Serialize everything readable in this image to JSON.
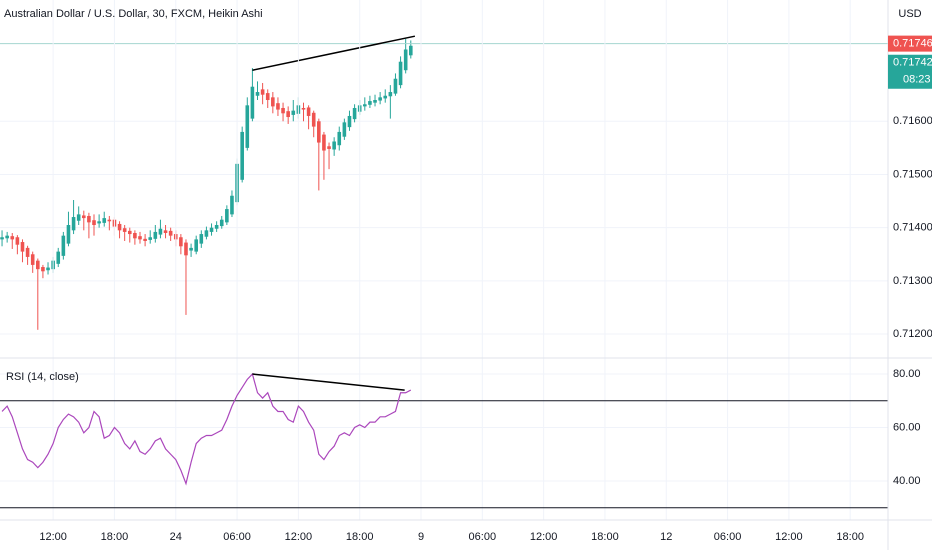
{
  "chart_data": [
    {
      "type": "candlestick",
      "title": "Australian Dollar / U.S. Dollar, 30, FXCM, Heikin Ashi",
      "currency": "USD",
      "x": [
        7,
        7.5,
        8,
        8.5,
        9,
        9.5,
        10,
        10.5,
        11,
        11.5,
        12,
        12.5,
        13,
        13.5,
        14,
        14.5,
        15,
        15.5,
        16,
        16.5,
        17,
        17.5,
        18,
        18.5,
        19,
        19.5,
        20,
        20.5,
        21,
        21.5,
        22,
        22.5,
        23,
        23.5,
        24,
        24.5,
        25,
        25.5,
        26,
        26.5,
        27,
        27.5,
        28,
        28.5,
        29,
        29.5,
        30,
        30.5,
        31,
        31.5,
        32,
        32.5,
        33,
        33.5,
        34,
        34.5,
        35,
        35.5,
        36,
        36.5,
        37,
        37.5,
        38,
        38.5,
        39,
        39.5,
        40,
        40.5,
        41,
        41.5,
        42,
        42.5,
        43,
        43.5,
        44,
        44.5,
        45,
        45.5,
        46,
        46.5,
        47
      ],
      "open": [
        0.71378,
        0.7138,
        0.71384,
        0.71382,
        0.71373,
        0.71362,
        0.7135,
        0.71338,
        0.71326,
        0.7132,
        0.71322,
        0.71332,
        0.71347,
        0.7137,
        0.71395,
        0.71413,
        0.71423,
        0.71422,
        0.71414,
        0.71408,
        0.71409,
        0.71415,
        0.71415,
        0.71407,
        0.71399,
        0.71394,
        0.7139,
        0.71384,
        0.71379,
        0.71377,
        0.71379,
        0.71387,
        0.71395,
        0.71394,
        0.71388,
        0.71382,
        0.71372,
        0.71357,
        0.71355,
        0.7137,
        0.71383,
        0.71392,
        0.71398,
        0.71403,
        0.7141,
        0.71425,
        0.71448,
        0.7149,
        0.7155,
        0.71605,
        0.71648,
        0.7166,
        0.71653,
        0.71645,
        0.71634,
        0.71625,
        0.71619,
        0.71612,
        0.71614,
        0.71625,
        0.71626,
        0.71616,
        0.716,
        0.71575,
        0.71553,
        0.71547,
        0.71555,
        0.71571,
        0.71589,
        0.71604,
        0.71618,
        0.71628,
        0.71631,
        0.71635,
        0.71639,
        0.71643,
        0.71647,
        0.71652,
        0.71668,
        0.71696,
        0.71724
      ],
      "high": [
        0.71395,
        0.71392,
        0.7139,
        0.71386,
        0.71378,
        0.71366,
        0.71355,
        0.71342,
        0.7133,
        0.71335,
        0.71345,
        0.71362,
        0.71392,
        0.7143,
        0.71452,
        0.7144,
        0.71432,
        0.71428,
        0.71425,
        0.71425,
        0.7143,
        0.71422,
        0.7142,
        0.71412,
        0.71405,
        0.714,
        0.71395,
        0.71392,
        0.71388,
        0.71395,
        0.71405,
        0.71415,
        0.71405,
        0.714,
        0.71395,
        0.71388,
        0.71378,
        0.7137,
        0.71385,
        0.71395,
        0.71402,
        0.71408,
        0.71412,
        0.71422,
        0.71442,
        0.7147,
        0.7153,
        0.7159,
        0.71645,
        0.717,
        0.71675,
        0.71672,
        0.7166,
        0.71655,
        0.71645,
        0.71635,
        0.71628,
        0.7164,
        0.71645,
        0.71635,
        0.7163,
        0.7162,
        0.71605,
        0.7158,
        0.7156,
        0.7157,
        0.7159,
        0.71605,
        0.7162,
        0.71632,
        0.7164,
        0.71645,
        0.71648,
        0.7165,
        0.71655,
        0.7166,
        0.71668,
        0.7169,
        0.71722,
        0.71755,
        0.71752
      ],
      "low": [
        0.71365,
        0.71372,
        0.7136,
        0.7135,
        0.71335,
        0.7133,
        0.71315,
        0.71208,
        0.71305,
        0.71312,
        0.71315,
        0.71326,
        0.7134,
        0.71365,
        0.71388,
        0.71405,
        0.71395,
        0.7138,
        0.71385,
        0.714,
        0.71402,
        0.71395,
        0.71385,
        0.7138,
        0.71375,
        0.71372,
        0.71368,
        0.7137,
        0.71365,
        0.7137,
        0.71372,
        0.7138,
        0.7138,
        0.71375,
        0.71365,
        0.7135,
        0.71236,
        0.71345,
        0.7135,
        0.71362,
        0.71378,
        0.71385,
        0.71392,
        0.71398,
        0.71405,
        0.7142,
        0.71442,
        0.71485,
        0.71545,
        0.716,
        0.7164,
        0.71632,
        0.71625,
        0.71615,
        0.7161,
        0.716,
        0.71595,
        0.716,
        0.71605,
        0.716,
        0.71585,
        0.7157,
        0.7147,
        0.7149,
        0.7151,
        0.71535,
        0.71545,
        0.71565,
        0.71582,
        0.71598,
        0.71612,
        0.7162,
        0.71625,
        0.71628,
        0.71632,
        0.71635,
        0.71605,
        0.71648,
        0.71662,
        0.7169,
        0.71718
      ],
      "close": [
        0.71382,
        0.71385,
        0.71378,
        0.71368,
        0.71355,
        0.71345,
        0.7133,
        0.71322,
        0.71318,
        0.71325,
        0.71338,
        0.71355,
        0.71385,
        0.71405,
        0.7142,
        0.71425,
        0.71418,
        0.7141,
        0.71405,
        0.71412,
        0.71418,
        0.71412,
        0.71402,
        0.71395,
        0.71392,
        0.71388,
        0.7138,
        0.71378,
        0.71375,
        0.71382,
        0.71392,
        0.71398,
        0.7139,
        0.71385,
        0.71378,
        0.71365,
        0.71348,
        0.71362,
        0.71378,
        0.71388,
        0.71395,
        0.714,
        0.71405,
        0.71415,
        0.71435,
        0.7146,
        0.7152,
        0.7158,
        0.7163,
        0.71665,
        0.71655,
        0.7165,
        0.7164,
        0.71628,
        0.71622,
        0.71615,
        0.71608,
        0.7162,
        0.7163,
        0.71622,
        0.7161,
        0.7159,
        0.7156,
        0.71545,
        0.71548,
        0.71562,
        0.7158,
        0.71598,
        0.7161,
        0.71625,
        0.7163,
        0.71632,
        0.71638,
        0.7164,
        0.71645,
        0.71648,
        0.71655,
        0.7168,
        0.71712,
        0.71735,
        0.71742
      ],
      "up_color": "#26a69a",
      "down_color": "#ef5350",
      "xlim": [
        6.8,
        93.7
      ],
      "ylim": [
        0.71155,
        0.71828
      ],
      "yticks": [
        {
          "value": 0.716,
          "label": "0.71600"
        },
        {
          "value": 0.715,
          "label": "0.71500"
        },
        {
          "value": 0.714,
          "label": "0.71400"
        },
        {
          "value": 0.713,
          "label": "0.71300"
        },
        {
          "value": 0.712,
          "label": "0.71200"
        }
      ],
      "grid": true,
      "last_price": {
        "value": 0.71746,
        "label": "0.71746"
      },
      "last_price_color": "#ef5350",
      "close_label": "0.71742",
      "countdown": "08:23",
      "trendline": {
        "x": [
          31.5,
          47.4
        ],
        "y": [
          0.71696,
          0.7176
        ],
        "color": "#000000"
      }
    },
    {
      "type": "line",
      "title": "RSI (14, close)",
      "color": "#ab47bc",
      "x": [
        7,
        7.5,
        8,
        8.5,
        9,
        9.5,
        10,
        10.5,
        11,
        11.5,
        12,
        12.5,
        13,
        13.5,
        14,
        14.5,
        15,
        15.5,
        16,
        16.5,
        17,
        17.5,
        18,
        18.5,
        19,
        19.5,
        20,
        20.5,
        21,
        21.5,
        22,
        22.5,
        23,
        23.5,
        24,
        24.5,
        25,
        25.5,
        26,
        26.5,
        27,
        27.5,
        28,
        28.5,
        29,
        29.5,
        30,
        30.5,
        31,
        31.5,
        32,
        32.5,
        33,
        33.5,
        34,
        34.5,
        35,
        35.5,
        36,
        36.5,
        37,
        37.5,
        38,
        38.5,
        39,
        39.5,
        40,
        40.5,
        41,
        41.5,
        42,
        42.5,
        43,
        43.5,
        44,
        44.5,
        45,
        45.5,
        46,
        46.5,
        47
      ],
      "values": [
        66,
        68,
        64,
        58,
        52,
        48,
        47,
        45,
        47,
        50,
        54,
        60,
        63,
        65,
        64,
        62,
        58,
        60,
        66,
        64,
        56,
        57,
        60,
        58,
        54,
        52,
        55,
        51,
        50,
        52,
        55,
        56,
        52,
        50,
        48,
        44,
        39,
        47,
        54,
        56,
        57,
        57,
        58,
        59,
        63,
        68,
        72,
        75,
        78,
        80,
        73,
        71,
        73,
        68,
        66,
        66,
        63,
        62,
        68,
        66,
        62,
        59,
        50,
        48,
        51,
        53,
        57,
        58,
        57,
        60,
        61,
        60,
        62,
        62,
        64,
        64,
        65,
        66,
        73,
        73,
        74
      ],
      "levels": [
        70,
        30
      ],
      "xlim": [
        6.8,
        93.7
      ],
      "ylim": [
        25.4,
        86
      ],
      "yticks": [
        {
          "value": 80,
          "label": "80.00"
        },
        {
          "value": 60,
          "label": "60.00"
        },
        {
          "value": 40,
          "label": "40.00"
        }
      ],
      "xticks": [
        {
          "value": 12,
          "label": "12:00"
        },
        {
          "value": 18,
          "label": "18:00"
        },
        24,
        {
          "value": 30,
          "label": "06:00"
        },
        {
          "value": 36,
          "label": "12:00"
        },
        {
          "value": 42,
          "label": "18:00"
        },
        {
          "value": 48,
          "label": "9"
        },
        {
          "value": 54,
          "label": "06:00"
        },
        {
          "value": 60,
          "label": "12:00"
        },
        {
          "value": 66,
          "label": "18:00"
        },
        {
          "value": 72,
          "label": "12"
        },
        {
          "value": 78,
          "label": "06:00"
        },
        {
          "value": 84,
          "label": "12:00"
        },
        {
          "value": 90,
          "label": "18:00"
        }
      ],
      "trendline": {
        "x": [
          31.5,
          46.4
        ],
        "y": [
          80,
          74
        ],
        "color": "#000000"
      }
    }
  ]
}
